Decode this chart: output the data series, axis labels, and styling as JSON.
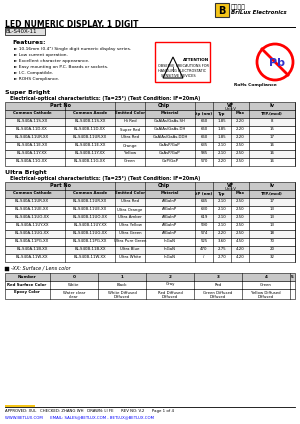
{
  "title": "LED NUMERIC DISPLAY, 1 DIGIT",
  "part_number": "BL-S40X-11",
  "company_cn": "百梅光电",
  "company_en": "BriLux Electronics",
  "features": [
    "10.16mm (0.4\") Single digit numeric display series.",
    "Low current operation.",
    "Excellent character appearance.",
    "Easy mounting on P.C. Boards or sockets.",
    "I.C. Compatible.",
    "ROHS Compliance."
  ],
  "super_bright_title": "Super Bright",
  "super_bright_condition": "Electrical-optical characteristics: (Ta=25°) (Test Condition: IF=20mA)",
  "super_bright_headers": [
    "Part No",
    "",
    "Chip",
    "",
    "VF Unit:V",
    "",
    "Iv"
  ],
  "super_bright_subheaders": [
    "Common Cathode",
    "Common Anode",
    "Emitted Color",
    "Material",
    "λp (nm)",
    "Typ",
    "Max",
    "TYP.(mcd)"
  ],
  "super_bright_rows": [
    [
      "BL-S40A-11S-XX",
      "BL-S40B-11S-XX",
      "Hi Red",
      "GaAlAs/GaAs.SH",
      "660",
      "1.85",
      "2.20",
      "8"
    ],
    [
      "BL-S40A-11D-XX",
      "BL-S40B-11D-XX",
      "Super Red",
      "GaAlAs/GaAs.DH",
      "660",
      "1.85",
      "2.20",
      "15"
    ],
    [
      "BL-S40A-11UR-XX",
      "BL-S40B-11UR-XX",
      "Ultra Red",
      "GaAlAs/GaAs.DDH",
      "660",
      "1.85",
      "2.20",
      "17"
    ],
    [
      "BL-S40A-11E-XX",
      "BL-S40B-11E-XX",
      "Orange",
      "GaAsP/GaP",
      "635",
      "2.10",
      "2.50",
      "16"
    ],
    [
      "BL-S40A-11Y-XX",
      "BL-S40B-11Y-XX",
      "Yellow",
      "GaAsP/GaP",
      "585",
      "2.10",
      "2.50",
      "16"
    ],
    [
      "BL-S40A-11G-XX",
      "BL-S40B-11G-XX",
      "Green",
      "GaP/GaP",
      "570",
      "2.20",
      "2.50",
      "16"
    ]
  ],
  "ultra_bright_title": "Ultra Bright",
  "ultra_bright_condition": "Electrical-optical characteristics: (Ta=25°) (Test Condition: IF=20mA)",
  "ultra_bright_subheaders": [
    "Common Cathode",
    "Common Anode",
    "Emitted Color",
    "Material",
    "λP (nm)",
    "Typ",
    "Max",
    "TYP.(mcd)"
  ],
  "ultra_bright_rows": [
    [
      "BL-S40A-11UR-XX",
      "BL-S40B-11UR-XX",
      "Ultra Red",
      "AlGaInP",
      "645",
      "2.10",
      "2.50",
      "17"
    ],
    [
      "BL-S40A-11UE-XX",
      "BL-S40B-11UE-XX",
      "Ultra Orange",
      "AlGaInP",
      "630",
      "2.10",
      "2.50",
      "13"
    ],
    [
      "BL-S40A-11UO-XX",
      "BL-S40B-11UO-XX",
      "Ultra Amber",
      "AlGaInP",
      "619",
      "2.10",
      "2.50",
      "13"
    ],
    [
      "BL-S40A-11UY-XX",
      "BL-S40B-11UY-XX",
      "Ultra Yellow",
      "AlGaInP",
      "590",
      "2.10",
      "2.50",
      "13"
    ],
    [
      "BL-S40A-11UG-XX",
      "BL-S40B-11UG-XX",
      "Ultra Green",
      "AlGaInP",
      "574",
      "2.20",
      "2.50",
      "18"
    ],
    [
      "BL-S40A-11PG-XX",
      "BL-S40B-11PG-XX",
      "Ultra Pure Green",
      "InGaN",
      "525",
      "3.60",
      "4.50",
      "70"
    ],
    [
      "BL-S40A-11B-XX",
      "BL-S40B-11B-XX",
      "Ultra Blue",
      "InGaN",
      "470",
      "2.75",
      "4.20",
      "20"
    ],
    [
      "BL-S40A-11W-XX",
      "BL-S40B-11W-XX",
      "Ultra White",
      "InGaN",
      "/",
      "2.70",
      "4.20",
      "32"
    ]
  ],
  "surface_lens_title": "-XX: Surface / Lens color",
  "surface_lens_numbers": [
    "0",
    "1",
    "2",
    "3",
    "4",
    "5"
  ],
  "surface_colors": [
    "White",
    "Black",
    "Gray",
    "Red",
    "Green",
    ""
  ],
  "epoxy_colors": [
    "Water clear",
    "White Diffused",
    "Red Diffused",
    "Green Diffused",
    "Yellow Diffused",
    ""
  ],
  "footer_approved": "APPROVED: XUL   CHECKED: ZHANG WH   DRAWN: LI FE      REV NO: V.2      Page 1 of 4",
  "footer_web": "WWW.BETLUX.COM      EMAIL: SALES@BETLUX.COM , BETLUX@BETLUX.COM",
  "bg_color": "#ffffff",
  "header_bg": "#d0d0d0",
  "row_alt": "#f0f0f0",
  "table_border": "#888888"
}
